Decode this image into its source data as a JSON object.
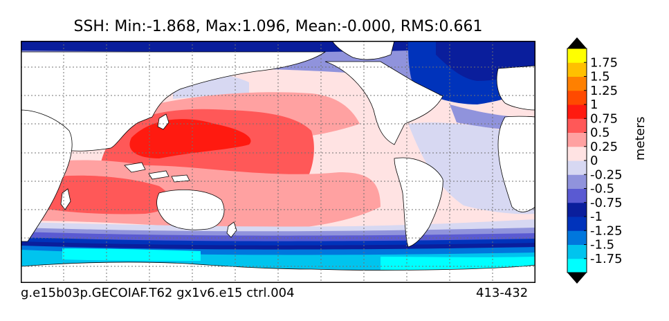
{
  "chart_data": {
    "type": "heatmap",
    "title": "SSH: Min:-1.868, Max:1.096, Mean:-0.000, RMS:0.661",
    "stats": {
      "min": -1.868,
      "max": 1.096,
      "mean": -0.0,
      "rms": 0.661
    },
    "footer_left": "g.e15b03p.GECOIAF.T62 gx1v6.e15 ctrl.004",
    "footer_right": "413-432",
    "colorbar": {
      "units": "meters",
      "levels": [
        -2.0,
        -1.75,
        -1.5,
        -1.25,
        -1.0,
        -0.75,
        -0.5,
        -0.25,
        0,
        0.25,
        0.5,
        0.75,
        1.0,
        1.25,
        1.5,
        1.75,
        2.0
      ],
      "tick_labels": [
        "1.75",
        "1.5",
        "1.25",
        "1",
        "0.75",
        "0.5",
        "0.25",
        "0",
        "-0.25",
        "-0.5",
        "-0.75",
        "-1",
        "-1.25",
        "-1.5",
        "-1.75"
      ],
      "colors_bottom_to_top": [
        "#00ffff",
        "#00c4ee",
        "#0077dd",
        "#0033bb",
        "#0a1e9c",
        "#5a5ad2",
        "#9093dc",
        "#d7d8f2",
        "#ffe3e3",
        "#ffa1a1",
        "#ff5858",
        "#ff1a10",
        "#ff4a00",
        "#ff8000",
        "#ffc000",
        "#ffff00"
      ],
      "extend": "both"
    },
    "colors": {
      "land": "#ffffff",
      "grid": "#707070",
      "frame": "#000000"
    }
  }
}
